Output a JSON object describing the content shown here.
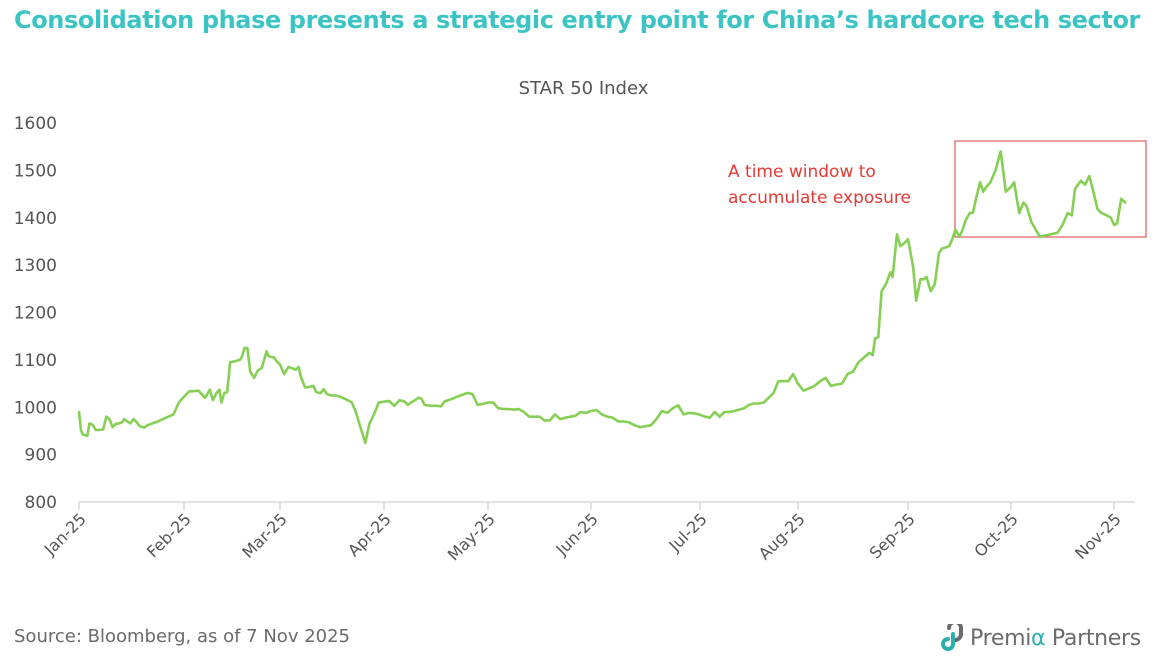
{
  "header": {
    "title": "Consolidation phase presents a strategic entry point for China’s hardcore tech sector"
  },
  "footer": {
    "source": "Source: Bloomberg, as of 7 Nov 2025",
    "logo_prefix": "Premi",
    "logo_alpha": "α",
    "logo_suffix": " Partners"
  },
  "colors": {
    "title": "#3cc4c4",
    "line": "#86cf55",
    "annotation": "#e53935",
    "axis": "#d9d9d9",
    "logo_accent": "#2bb0b0"
  },
  "chart_data": {
    "type": "line",
    "title": "STAR 50 Index",
    "xlabel": "",
    "ylabel": "",
    "ylim": [
      800,
      1600
    ],
    "yticks": [
      800,
      900,
      1000,
      1100,
      1200,
      1300,
      1400,
      1500,
      1600
    ],
    "categories": [
      "Jan-25",
      "Feb-25",
      "Mar-25",
      "Apr-25",
      "May-25",
      "Jun-25",
      "Jul-25",
      "Aug-25",
      "Sep-25",
      "Oct-25",
      "Nov-25"
    ],
    "grid": false,
    "legend": null,
    "annotation": {
      "text_line1": "A time window to",
      "text_line2": "accumulate exposure",
      "box": {
        "x_start": "mid-Sep-25",
        "x_end": "7-Nov-25",
        "y_low": 1360,
        "y_high": 1575
      }
    },
    "series": [
      {
        "name": "STAR 50 Index",
        "x_month_fraction": [
          0.0,
          0.02,
          0.04,
          0.08,
          0.1,
          0.13,
          0.16,
          0.19,
          0.23,
          0.26,
          0.29,
          0.32,
          0.35,
          0.38,
          0.41,
          0.43,
          0.46,
          0.49,
          0.52,
          0.55,
          0.58,
          0.62,
          0.65,
          0.7,
          0.75,
          0.8,
          0.85,
          0.9,
          0.95,
          1.0,
          1.05,
          1.15,
          1.22,
          1.27,
          1.3,
          1.34,
          1.37,
          1.39,
          1.42,
          1.45,
          1.48,
          1.53,
          1.58,
          1.6,
          1.63,
          1.66,
          1.69,
          1.73,
          1.77,
          1.81,
          1.86,
          1.88,
          1.91,
          1.94,
          1.96,
          2.0,
          2.04,
          2.08,
          2.12,
          2.15,
          2.18,
          2.2,
          2.24,
          2.28,
          2.32,
          2.35,
          2.39,
          2.42,
          2.45,
          2.49,
          2.53,
          2.58,
          2.62,
          2.65,
          2.69,
          2.73,
          2.77,
          2.82,
          2.86,
          2.91,
          2.95,
          3.0,
          3.05,
          3.1,
          3.15,
          3.2,
          3.23,
          3.26,
          3.3,
          3.33,
          3.36,
          3.39,
          3.45,
          3.5,
          3.55,
          3.58,
          3.62,
          3.66,
          3.7,
          3.75,
          3.8,
          3.85,
          3.9,
          3.95,
          4.0,
          4.05,
          4.1,
          4.15,
          4.2,
          4.25,
          4.3,
          4.35,
          4.4,
          4.45,
          4.5,
          4.55,
          4.6,
          4.65,
          4.7,
          4.75,
          4.8,
          4.85,
          4.9,
          4.95,
          5.0,
          5.05,
          5.1,
          5.15,
          5.2,
          5.25,
          5.3,
          5.35,
          5.4,
          5.45,
          5.5,
          5.55,
          5.6,
          5.65,
          5.7,
          5.75,
          5.8,
          5.85,
          5.9,
          5.95,
          6.0,
          6.05,
          6.1,
          6.15,
          6.2,
          6.25,
          6.3,
          6.35,
          6.4,
          6.45,
          6.5,
          6.55,
          6.6,
          6.65,
          6.7,
          6.75,
          6.8,
          6.85,
          6.9,
          6.95,
          7.0,
          7.05,
          7.1,
          7.15,
          7.2,
          7.25,
          7.3,
          7.35,
          7.4,
          7.45,
          7.5,
          7.55,
          7.6,
          7.65,
          7.68,
          7.7,
          7.73,
          7.76,
          7.8,
          7.84,
          7.86,
          7.9,
          7.93,
          7.96,
          8.0,
          8.03,
          8.05,
          8.08,
          8.12,
          8.15,
          8.18,
          8.22,
          8.26,
          8.3,
          8.33,
          8.36,
          8.4,
          8.43,
          8.46,
          8.5,
          8.53,
          8.56,
          8.6,
          8.63,
          8.66,
          8.7,
          8.73,
          8.76,
          8.8,
          8.85,
          8.9,
          8.95,
          9.0,
          9.03,
          9.08,
          9.12,
          9.15,
          9.2,
          9.28,
          9.45,
          9.5,
          9.55,
          9.59,
          9.62,
          9.65,
          9.68,
          9.72,
          9.76,
          9.8,
          9.84,
          9.88,
          9.93,
          9.97,
          10.0,
          10.03,
          10.07,
          10.11,
          10.15,
          10.18,
          10.2
        ],
        "values": [
          990,
          950,
          942,
          940,
          966,
          963,
          952,
          952,
          953,
          980,
          975,
          958,
          965,
          966,
          968,
          975,
          970,
          966,
          975,
          968,
          960,
          957,
          962,
          966,
          970,
          975,
          980,
          985,
          1010,
          1022,
          1033,
          1035,
          1020,
          1037,
          1015,
          1030,
          1037,
          1010,
          1030,
          1032,
          1095,
          1097,
          1100,
          1105,
          1125,
          1125,
          1075,
          1062,
          1078,
          1083,
          1118,
          1108,
          1106,
          1105,
          1098,
          1090,
          1070,
          1085,
          1082,
          1079,
          1085,
          1065,
          1042,
          1043,
          1045,
          1032,
          1030,
          1038,
          1028,
          1025,
          1025,
          1022,
          1018,
          1015,
          1010,
          990,
          960,
          925,
          965,
          988,
          1010,
          1012,
          1013,
          1003,
          1015,
          1012,
          1005,
          1010,
          1015,
          1020,
          1018,
          1005,
          1003,
          1003,
          1002,
          1012,
          1015,
          1018,
          1022,
          1026,
          1030,
          1028,
          1005,
          1007,
          1010,
          1010,
          998,
          996,
          996,
          995,
          996,
          990,
          980,
          980,
          980,
          972,
          972,
          985,
          975,
          978,
          980,
          982,
          990,
          988,
          992,
          994,
          985,
          980,
          978,
          970,
          970,
          968,
          962,
          958,
          960,
          962,
          975,
          992,
          988,
          998,
          1004,
          985,
          988,
          987,
          984,
          980,
          978,
          990,
          980,
          990,
          990,
          992,
          995,
          998,
          1005,
          1008,
          1008,
          1010,
          1020,
          1030,
          1055,
          1055,
          1055,
          1070,
          1050,
          1035,
          1040,
          1045,
          1055,
          1062,
          1045,
          1048,
          1050,
          1070,
          1075,
          1095,
          1105,
          1115,
          1110,
          1145,
          1148,
          1245,
          1260,
          1285,
          1275,
          1365,
          1340,
          1345,
          1355,
          1320,
          1295,
          1225,
          1270,
          1270,
          1275,
          1245,
          1260,
          1325,
          1335,
          1337,
          1340,
          1355,
          1375,
          1360,
          1375,
          1395,
          1410,
          1410,
          1440,
          1475,
          1455,
          1465,
          1475,
          1500,
          1540,
          1455,
          1465,
          1475,
          1410,
          1432,
          1425,
          1390,
          1360,
          1368,
          1385,
          1410,
          1405,
          1460,
          1470,
          1478,
          1470,
          1488,
          1455,
          1418,
          1410,
          1405,
          1400,
          1385,
          1388,
          1440,
          1432
        ]
      }
    ]
  }
}
